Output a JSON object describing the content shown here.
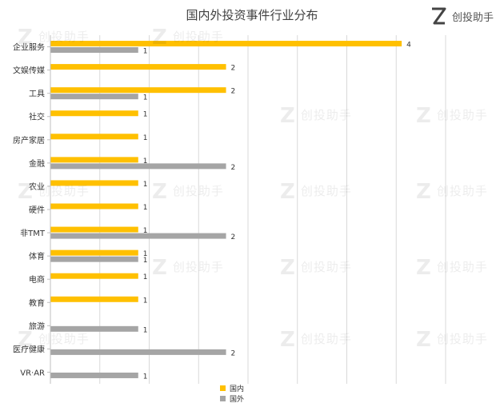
{
  "brand": {
    "name": "创投助手",
    "logo_icon": "z-logo-icon"
  },
  "watermark": "创投助手",
  "chart_data": {
    "type": "bar",
    "orientation": "horizontal",
    "title": "国内外投资事件行业分布",
    "categories": [
      "企业服务",
      "文娱传媒",
      "工具",
      "社交",
      "房产家居",
      "金融",
      "农业",
      "硬件",
      "非TMT",
      "体育",
      "电商",
      "教育",
      "旅游",
      "医疗健康",
      "VR·AR"
    ],
    "series": [
      {
        "name": "国内",
        "color": "#FFC000",
        "values": [
          4,
          2,
          2,
          1,
          1,
          1,
          1,
          1,
          1,
          1,
          1,
          1,
          null,
          null,
          null
        ]
      },
      {
        "name": "国外",
        "color": "#A5A5A5",
        "values": [
          1,
          null,
          1,
          null,
          null,
          2,
          null,
          null,
          2,
          1,
          null,
          null,
          1,
          2,
          1
        ]
      }
    ],
    "xlim": [
      0,
      4.5
    ],
    "grid": true,
    "legend_position": "bottom"
  }
}
